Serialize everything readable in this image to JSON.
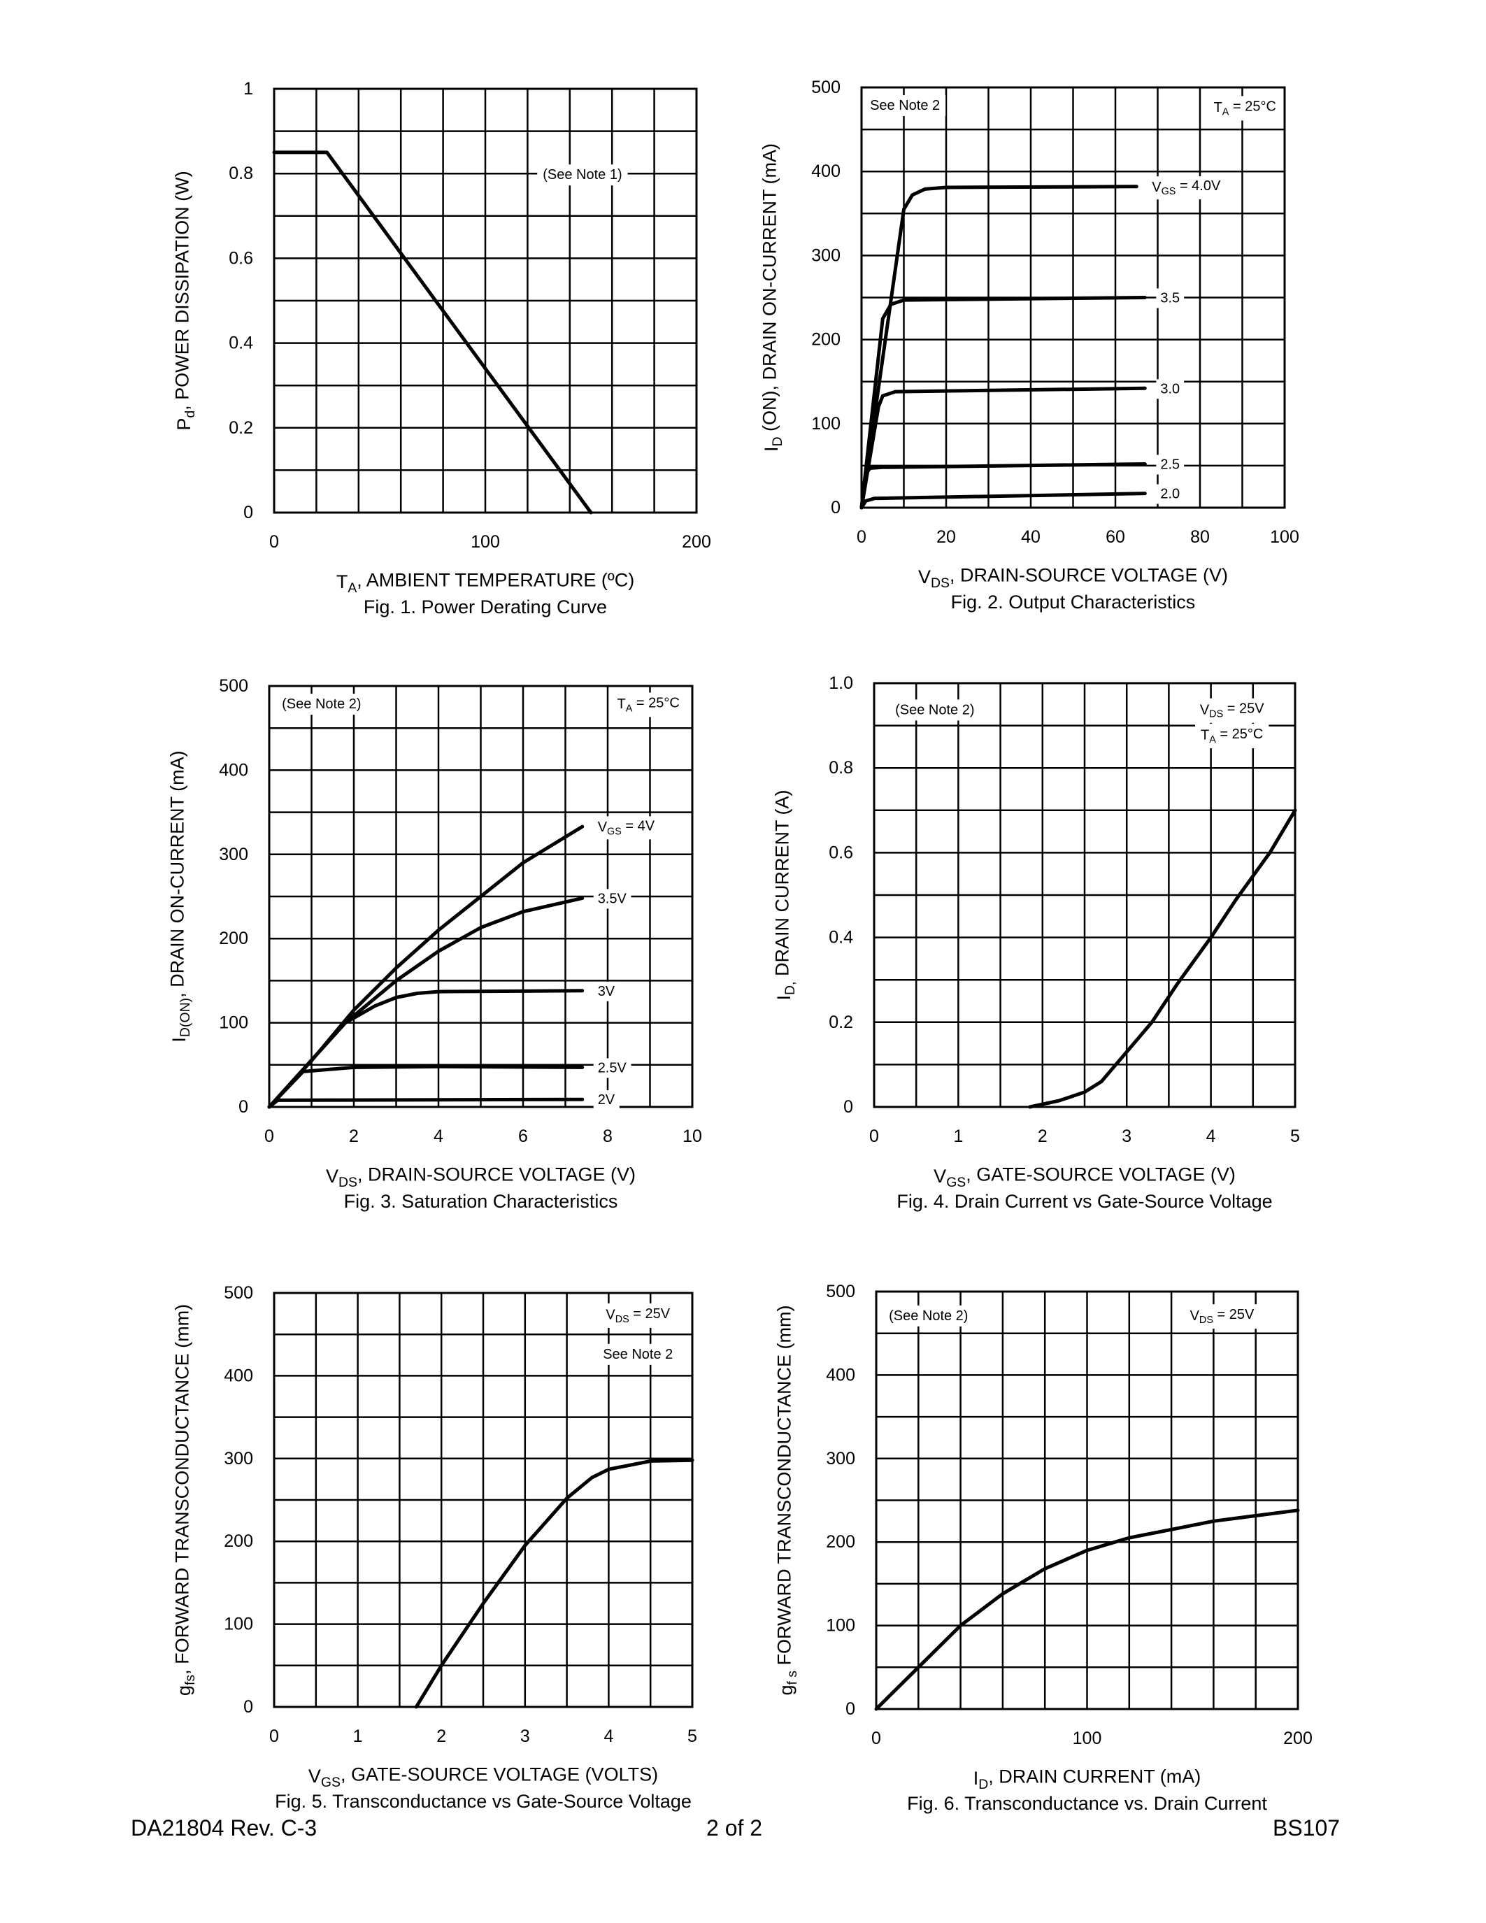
{
  "footer": {
    "doc_id": "DA21804 Rev. C-3",
    "page": "2 of 2",
    "part": "BS107"
  },
  "chart_data": [
    {
      "type": "line",
      "caption": "Fig. 1.  Power  Derating Curve",
      "xlabel": [
        {
          "t": "T"
        },
        {
          "t": "A",
          "sub": true
        },
        {
          "t": ", AMBIENT TEMPERATURE (ºC)"
        }
      ],
      "ylabel": [
        {
          "t": "P"
        },
        {
          "t": "d",
          "sub": true
        },
        {
          "t": ", POWER DISSIPATION (W)"
        }
      ],
      "xlim": [
        0,
        200
      ],
      "ylim": [
        0,
        1
      ],
      "xgrid_step": 20,
      "ygrid_step": 0.1,
      "grid": true,
      "xticks": [
        {
          "v": 0,
          "label": "0"
        },
        {
          "v": 100,
          "label": "100"
        },
        {
          "v": 200,
          "label": "200"
        }
      ],
      "yticks": [
        {
          "v": 0,
          "label": "0"
        },
        {
          "v": 0.2,
          "label": "0.2"
        },
        {
          "v": 0.4,
          "label": "0.4"
        },
        {
          "v": 0.6,
          "label": "0.6"
        },
        {
          "v": 0.8,
          "label": "0.8"
        },
        {
          "v": 1,
          "label": "1"
        }
      ],
      "annotations": [
        {
          "text": [
            {
              "t": "(See Note 1)"
            }
          ]
        }
      ],
      "series": [
        {
          "label": [],
          "points": [
            [
              0,
              0.85
            ],
            [
              25,
              0.85
            ],
            [
              150,
              0
            ]
          ]
        }
      ]
    },
    {
      "type": "line",
      "caption": "Fig. 2.  Output Characteristics",
      "xlabel": [
        {
          "t": "V"
        },
        {
          "t": "DS",
          "sub": true
        },
        {
          "t": ", DRAIN-SOURCE VOLTAGE (V)"
        }
      ],
      "ylabel": [
        {
          "t": "I"
        },
        {
          "t": "D",
          "sub": true
        },
        {
          "t": " (ON),  DRAIN ON-CURRENT (mA)"
        }
      ],
      "xlim": [
        0,
        100
      ],
      "ylim": [
        0,
        500
      ],
      "xgrid_step": 10,
      "ygrid_step": 50,
      "grid": true,
      "xticks": [
        {
          "v": 0,
          "label": "0"
        },
        {
          "v": 20,
          "label": "20"
        },
        {
          "v": 40,
          "label": "40"
        },
        {
          "v": 60,
          "label": "60"
        },
        {
          "v": 80,
          "label": "80"
        },
        {
          "v": 100,
          "label": "100"
        }
      ],
      "yticks": [
        {
          "v": 0,
          "label": "0"
        },
        {
          "v": 100,
          "label": "100"
        },
        {
          "v": 200,
          "label": "200"
        },
        {
          "v": 300,
          "label": "300"
        },
        {
          "v": 400,
          "label": "400"
        },
        {
          "v": 500,
          "label": "500"
        }
      ],
      "annotations": [
        {
          "text": [
            {
              "t": "See Note 2"
            }
          ]
        },
        {
          "text": [
            {
              "t": "T"
            },
            {
              "t": "A",
              "sub": true
            },
            {
              "t": " = 25°C"
            }
          ]
        }
      ],
      "series": [
        {
          "label": [
            {
              "t": "V"
            },
            {
              "t": "GS",
              "sub": true
            },
            {
              "t": " = 4.0V"
            }
          ],
          "points": [
            [
              0,
              0
            ],
            [
              10,
              355
            ],
            [
              12,
              372
            ],
            [
              15,
              379
            ],
            [
              20,
              381
            ],
            [
              65,
              382
            ]
          ]
        },
        {
          "label": [
            {
              "t": "3.5"
            }
          ],
          "points": [
            [
              0,
              0
            ],
            [
              5,
              225
            ],
            [
              7,
              242
            ],
            [
              10,
              247
            ],
            [
              67,
              250
            ]
          ]
        },
        {
          "label": [
            {
              "t": "3.0"
            }
          ],
          "points": [
            [
              0,
              0
            ],
            [
              4,
              120
            ],
            [
              5,
              133
            ],
            [
              8,
              138
            ],
            [
              67,
              142
            ]
          ]
        },
        {
          "label": [
            {
              "t": "2.5"
            }
          ],
          "points": [
            [
              0,
              0
            ],
            [
              1,
              40
            ],
            [
              2,
              47
            ],
            [
              5,
              48
            ],
            [
              67,
              52
            ]
          ]
        },
        {
          "label": [
            {
              "t": "2.0"
            }
          ],
          "points": [
            [
              0,
              0
            ],
            [
              1,
              8
            ],
            [
              3,
              11
            ],
            [
              67,
              17
            ]
          ]
        }
      ]
    },
    {
      "type": "line",
      "caption": "Fig. 3.  Saturation Characteristics",
      "xlabel": [
        {
          "t": "V"
        },
        {
          "t": "DS",
          "sub": true
        },
        {
          "t": ", DRAIN-SOURCE VOLTAGE (V)"
        }
      ],
      "ylabel": [
        {
          "t": "I"
        },
        {
          "t": "D(ON)",
          "sub": true
        },
        {
          "t": ", DRAIN ON-CURRENT (mA)"
        }
      ],
      "xlim": [
        0,
        10
      ],
      "ylim": [
        0,
        500
      ],
      "xgrid_step": 1,
      "ygrid_step": 50,
      "grid": true,
      "xticks": [
        {
          "v": 0,
          "label": "0"
        },
        {
          "v": 2,
          "label": "2"
        },
        {
          "v": 4,
          "label": "4"
        },
        {
          "v": 6,
          "label": "6"
        },
        {
          "v": 8,
          "label": "8"
        },
        {
          "v": 10,
          "label": "10"
        }
      ],
      "yticks": [
        {
          "v": 0,
          "label": "0"
        },
        {
          "v": 100,
          "label": "100"
        },
        {
          "v": 200,
          "label": "200"
        },
        {
          "v": 300,
          "label": "300"
        },
        {
          "v": 400,
          "label": "400"
        },
        {
          "v": 500,
          "label": "500"
        }
      ],
      "annotations": [
        {
          "text": [
            {
              "t": "(See Note 2)"
            }
          ]
        },
        {
          "text": [
            {
              "t": "T"
            },
            {
              "t": "A",
              "sub": true
            },
            {
              "t": " = 25°C"
            }
          ]
        }
      ],
      "series": [
        {
          "label": [
            {
              "t": "V"
            },
            {
              "t": "GS",
              "sub": true
            },
            {
              "t": " = 4V"
            }
          ],
          "points": [
            [
              0,
              0
            ],
            [
              1,
              55
            ],
            [
              2,
              115
            ],
            [
              3,
              165
            ],
            [
              4,
              210
            ],
            [
              5,
              250
            ],
            [
              6,
              290
            ],
            [
              7.4,
              333
            ]
          ]
        },
        {
          "label": [
            {
              "t": "3.5V"
            }
          ],
          "points": [
            [
              0,
              0
            ],
            [
              1.8,
              100
            ],
            [
              3,
              150
            ],
            [
              4,
              185
            ],
            [
              5,
              213
            ],
            [
              6,
              232
            ],
            [
              7.4,
              248
            ]
          ]
        },
        {
          "label": [
            {
              "t": "3V"
            }
          ],
          "points": [
            [
              0,
              0
            ],
            [
              1.8,
              100
            ],
            [
              2.5,
              120
            ],
            [
              3,
              130
            ],
            [
              3.5,
              135
            ],
            [
              4,
              137
            ],
            [
              7.4,
              138
            ]
          ]
        },
        {
          "label": [
            {
              "t": "2.5V"
            }
          ],
          "points": [
            [
              0,
              0
            ],
            [
              0.8,
              42
            ],
            [
              2,
              47
            ],
            [
              4,
              48
            ],
            [
              7.4,
              47
            ]
          ]
        },
        {
          "label": [
            {
              "t": "2V"
            }
          ],
          "points": [
            [
              0,
              0
            ],
            [
              0.2,
              8
            ],
            [
              7.4,
              9
            ]
          ]
        }
      ]
    },
    {
      "type": "line",
      "caption": "Fig. 4. Drain Current vs Gate-Source Voltage",
      "xlabel": [
        {
          "t": "V"
        },
        {
          "t": "GS",
          "sub": true
        },
        {
          "t": ", GATE-SOURCE VOLTAGE (V)"
        }
      ],
      "ylabel": [
        {
          "t": "I"
        },
        {
          "t": "D,",
          "sub": true
        },
        {
          "t": "  DRAIN CURRENT (A)"
        }
      ],
      "xlim": [
        0,
        5
      ],
      "ylim": [
        0,
        1
      ],
      "xgrid_step": 0.5,
      "ygrid_step": 0.1,
      "grid": true,
      "xticks": [
        {
          "v": 0,
          "label": "0"
        },
        {
          "v": 1,
          "label": "1"
        },
        {
          "v": 2,
          "label": "2"
        },
        {
          "v": 3,
          "label": "3"
        },
        {
          "v": 4,
          "label": "4"
        },
        {
          "v": 5,
          "label": "5"
        }
      ],
      "yticks": [
        {
          "v": 0,
          "label": "0"
        },
        {
          "v": 0.2,
          "label": "0.2"
        },
        {
          "v": 0.4,
          "label": "0.4"
        },
        {
          "v": 0.6,
          "label": "0.6"
        },
        {
          "v": 0.8,
          "label": "0.8"
        },
        {
          "v": 1,
          "label": "1.0"
        }
      ],
      "annotations": [
        {
          "text": [
            {
              "t": "(See Note 2)"
            }
          ]
        },
        {
          "text": [
            {
              "t": "V"
            },
            {
              "t": "DS",
              "sub": true
            },
            {
              "t": " = 25V"
            }
          ]
        },
        {
          "text": [
            {
              "t": "T"
            },
            {
              "t": "A",
              "sub": true
            },
            {
              "t": " = 25°C"
            }
          ]
        }
      ],
      "series": [
        {
          "label": [],
          "points": [
            [
              1.85,
              0
            ],
            [
              2.2,
              0.015
            ],
            [
              2.5,
              0.035
            ],
            [
              2.7,
              0.06
            ],
            [
              3,
              0.13
            ],
            [
              3.3,
              0.2
            ],
            [
              3.6,
              0.29
            ],
            [
              4,
              0.4
            ],
            [
              4.3,
              0.49
            ],
            [
              4.7,
              0.6
            ],
            [
              5,
              0.7
            ]
          ]
        }
      ]
    },
    {
      "type": "line",
      "caption": "Fig. 5.  Transconductance vs Gate-Source Voltage",
      "xlabel": [
        {
          "t": "V"
        },
        {
          "t": "GS",
          "sub": true
        },
        {
          "t": ", GATE-SOURCE VOLTAGE (VOLTS)"
        }
      ],
      "ylabel": [
        {
          "t": "g"
        },
        {
          "t": "fs",
          "sub": true
        },
        {
          "t": ", FORWARD TRANSCONDUCTANCE (mm)"
        }
      ],
      "xlim": [
        0,
        5
      ],
      "ylim": [
        0,
        500
      ],
      "xgrid_step": 0.5,
      "ygrid_step": 50,
      "grid": true,
      "xticks": [
        {
          "v": 0,
          "label": "0"
        },
        {
          "v": 1,
          "label": "1"
        },
        {
          "v": 2,
          "label": "2"
        },
        {
          "v": 3,
          "label": "3"
        },
        {
          "v": 4,
          "label": "4"
        },
        {
          "v": 5,
          "label": "5"
        }
      ],
      "yticks": [
        {
          "v": 0,
          "label": "0"
        },
        {
          "v": 100,
          "label": "100"
        },
        {
          "v": 200,
          "label": "200"
        },
        {
          "v": 300,
          "label": "300"
        },
        {
          "v": 400,
          "label": "400"
        },
        {
          "v": 500,
          "label": "500"
        }
      ],
      "annotations": [
        {
          "text": [
            {
              "t": "V"
            },
            {
              "t": "DS",
              "sub": true
            },
            {
              "t": " = 25V"
            }
          ]
        },
        {
          "text": [
            {
              "t": "See Note 2"
            }
          ]
        }
      ],
      "series": [
        {
          "label": [],
          "points": [
            [
              1.7,
              0
            ],
            [
              2,
              50
            ],
            [
              2.5,
              125
            ],
            [
              3,
              195
            ],
            [
              3.5,
              252
            ],
            [
              3.8,
              277
            ],
            [
              4,
              287
            ],
            [
              4.5,
              297
            ],
            [
              5,
              298
            ]
          ]
        }
      ]
    },
    {
      "type": "line",
      "caption": "Fig. 6.  Transconductance vs. Drain Current",
      "xlabel": [
        {
          "t": "I"
        },
        {
          "t": "D",
          "sub": true
        },
        {
          "t": ", DRAIN CURRENT (mA)"
        }
      ],
      "ylabel": [
        {
          "t": "g"
        },
        {
          "t": "f s",
          "sub": true
        },
        {
          "t": " FORWARD TRANSCONDUCTANCE (mm)"
        }
      ],
      "xlim": [
        0,
        200
      ],
      "ylim": [
        0,
        500
      ],
      "xgrid_step": 20,
      "ygrid_step": 50,
      "grid": true,
      "xticks": [
        {
          "v": 0,
          "label": "0"
        },
        {
          "v": 100,
          "label": "100"
        },
        {
          "v": 200,
          "label": "200"
        }
      ],
      "yticks": [
        {
          "v": 0,
          "label": "0"
        },
        {
          "v": 100,
          "label": "100"
        },
        {
          "v": 200,
          "label": "200"
        },
        {
          "v": 300,
          "label": "300"
        },
        {
          "v": 400,
          "label": "400"
        },
        {
          "v": 500,
          "label": "500"
        }
      ],
      "annotations": [
        {
          "text": [
            {
              "t": "(See Note 2)"
            }
          ]
        },
        {
          "text": [
            {
              "t": "V"
            },
            {
              "t": "DS",
              "sub": true
            },
            {
              "t": " = 25V"
            }
          ]
        }
      ],
      "series": [
        {
          "label": [],
          "points": [
            [
              0,
              0
            ],
            [
              20,
              50
            ],
            [
              40,
              100
            ],
            [
              60,
              138
            ],
            [
              80,
              168
            ],
            [
              100,
              190
            ],
            [
              120,
              205
            ],
            [
              140,
              215
            ],
            [
              160,
              225
            ],
            [
              200,
              238
            ]
          ]
        }
      ]
    }
  ]
}
